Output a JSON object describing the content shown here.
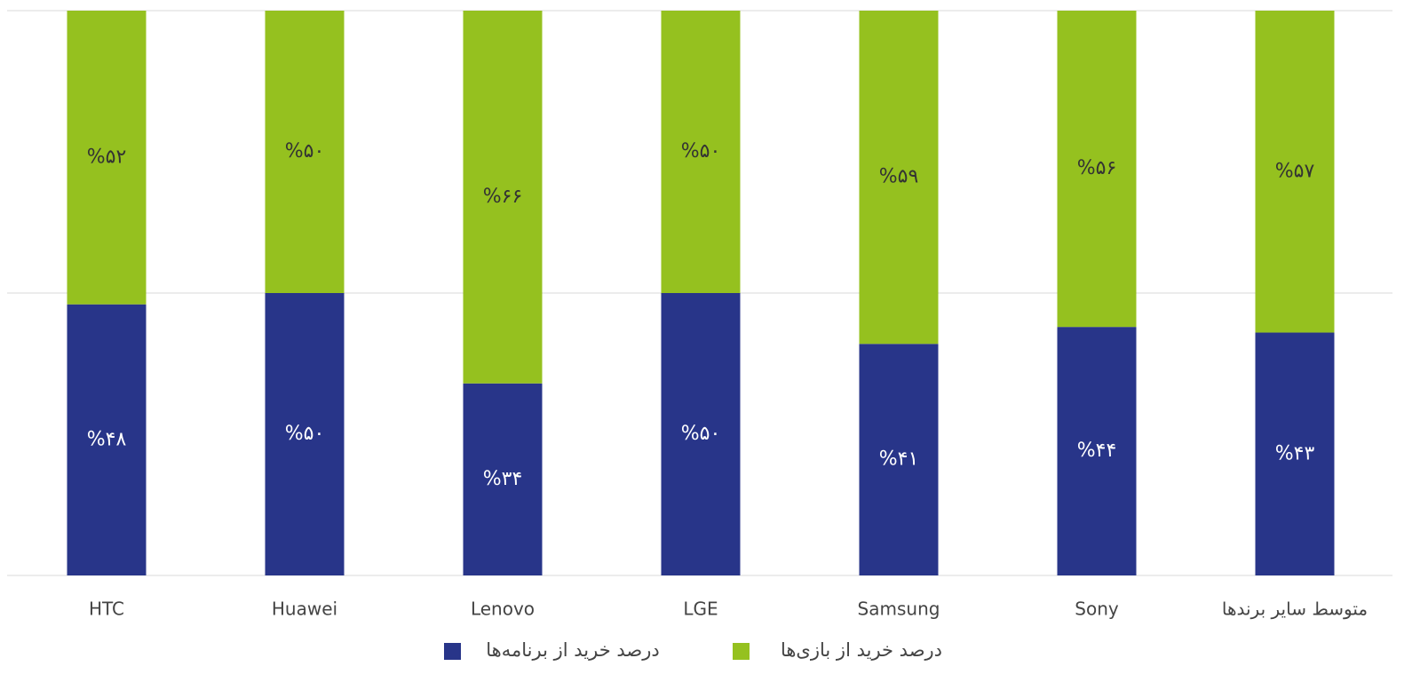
{
  "chart_data": {
    "type": "stacked_bar",
    "categories": [
      "HTC",
      "Huawei",
      "Lenovo",
      "LGE",
      "Samsung",
      "Sony",
      "متوسط سایر برندها"
    ],
    "series": [
      {
        "name": "درصد خرید از برنامه‌ها",
        "color": "#283589",
        "values": [
          48,
          50,
          34,
          50,
          41,
          44,
          43
        ],
        "value_labels": [
          "%۴۸",
          "%۵۰",
          "%۳۴",
          "%۵۰",
          "%۴۱",
          "%۴۴",
          "%۴۳"
        ]
      },
      {
        "name": "درصد خرید از بازی‌ها",
        "color": "#95c11f",
        "values": [
          52,
          50,
          66,
          50,
          59,
          56,
          57
        ],
        "value_labels": [
          "%۵۲",
          "%۵۰",
          "%۶۶",
          "%۵۰",
          "%۵۹",
          "%۵۶",
          "%۵۷"
        ]
      }
    ],
    "ylim": [
      0,
      100
    ],
    "yticks": [
      0,
      50,
      100
    ],
    "grid": true
  }
}
